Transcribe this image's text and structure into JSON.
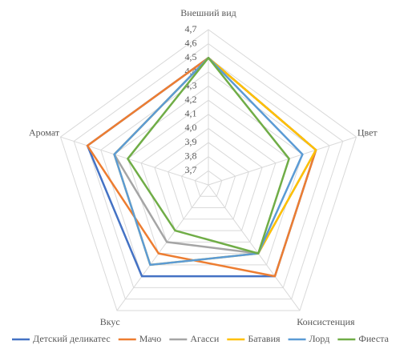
{
  "chart_data": {
    "type": "radar",
    "categories": [
      "Внешний вид",
      "Цвет",
      "Консистенция",
      "Вкус",
      "Аромат"
    ],
    "ylim": [
      3.6,
      4.7
    ],
    "yticks": [
      {
        "value": 3.7,
        "label": "3,7"
      },
      {
        "value": 3.8,
        "label": "3,8"
      },
      {
        "value": 3.9,
        "label": "3,9"
      },
      {
        "value": 4.0,
        "label": "4,0"
      },
      {
        "value": 4.1,
        "label": "4,1"
      },
      {
        "value": 4.2,
        "label": "4,2"
      },
      {
        "value": 4.3,
        "label": "4,3"
      },
      {
        "value": 4.4,
        "label": "4,4"
      },
      {
        "value": 4.5,
        "label": "4,5"
      },
      {
        "value": 4.6,
        "label": "4,6"
      },
      {
        "value": 4.7,
        "label": "4,7"
      }
    ],
    "grid": true,
    "legend": "bottom",
    "series": [
      {
        "name": "Детский деликатес",
        "color": "#4472c4",
        "values": [
          4.5,
          4.4,
          4.4,
          4.4,
          4.5
        ]
      },
      {
        "name": "Мачо",
        "color": "#ed7d31",
        "values": [
          4.5,
          4.4,
          4.4,
          4.2,
          4.5
        ]
      },
      {
        "name": "Агасси",
        "color": "#a5a5a5",
        "values": [
          4.5,
          4.4,
          4.2,
          4.1,
          4.3
        ]
      },
      {
        "name": "Батавия",
        "color": "#ffc000",
        "values": [
          4.5,
          4.4,
          4.2,
          4.3,
          4.3
        ]
      },
      {
        "name": "Лорд",
        "color": "#5b9bd5",
        "values": [
          4.5,
          4.3,
          4.2,
          4.3,
          4.3
        ]
      },
      {
        "name": "Фиеста",
        "color": "#70ad47",
        "values": [
          4.5,
          4.2,
          4.2,
          4.0,
          4.2
        ]
      }
    ]
  }
}
